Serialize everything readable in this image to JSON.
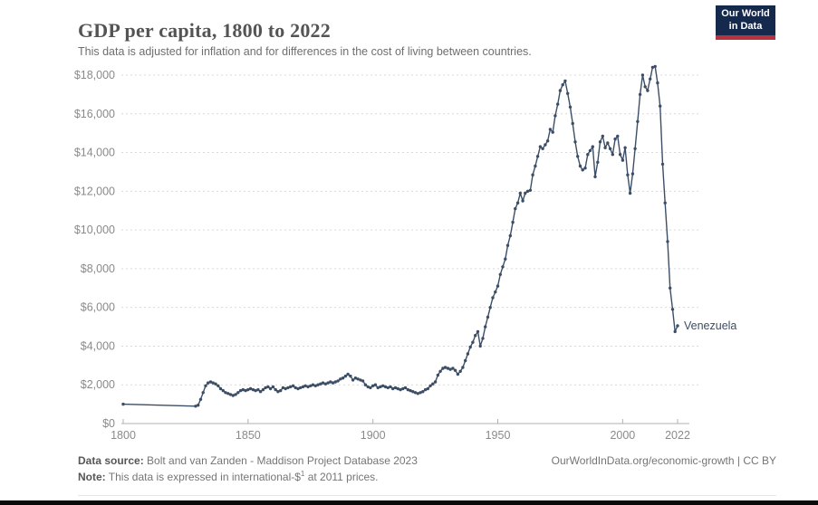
{
  "header": {
    "title": "GDP per capita, 1800 to 2022",
    "subtitle": "This data is adjusted for inflation and for differences in the cost of living between countries."
  },
  "logo": {
    "line1": "Our World",
    "line2": "in Data",
    "bg_color": "#15294c",
    "bar_color": "#b5333f"
  },
  "chart_data": {
    "type": "line",
    "title": "GDP per capita, 1800 to 2022",
    "xlabel": "",
    "ylabel": "",
    "xlim": [
      1800,
      2022
    ],
    "ylim": [
      0,
      18000
    ],
    "grid": "horizontal-dotted",
    "x_ticks": [
      {
        "value": 1800,
        "label": "1800"
      },
      {
        "value": 1850,
        "label": "1850"
      },
      {
        "value": 1900,
        "label": "1900"
      },
      {
        "value": 1950,
        "label": "1950"
      },
      {
        "value": 2000,
        "label": "2000"
      },
      {
        "value": 2022,
        "label": "2022"
      }
    ],
    "y_ticks": [
      {
        "value": 0,
        "label": "$0"
      },
      {
        "value": 2000,
        "label": "$2,000"
      },
      {
        "value": 4000,
        "label": "$4,000"
      },
      {
        "value": 6000,
        "label": "$6,000"
      },
      {
        "value": 8000,
        "label": "$8,000"
      },
      {
        "value": 10000,
        "label": "$10,000"
      },
      {
        "value": 12000,
        "label": "$12,000"
      },
      {
        "value": 14000,
        "label": "$14,000"
      },
      {
        "value": 16000,
        "label": "$16,000"
      },
      {
        "value": 18000,
        "label": "$18,000"
      }
    ],
    "series": [
      {
        "name": "Venezuela",
        "color": "#3c4e66",
        "end_label": "Venezuela",
        "points": [
          [
            1800,
            1000
          ],
          [
            1829,
            900
          ],
          [
            1830,
            950
          ],
          [
            1831,
            1250
          ],
          [
            1832,
            1600
          ],
          [
            1833,
            1950
          ],
          [
            1834,
            2100
          ],
          [
            1835,
            2150
          ],
          [
            1836,
            2100
          ],
          [
            1837,
            2050
          ],
          [
            1838,
            1950
          ],
          [
            1839,
            1800
          ],
          [
            1840,
            1700
          ],
          [
            1841,
            1600
          ],
          [
            1842,
            1550
          ],
          [
            1843,
            1500
          ],
          [
            1844,
            1450
          ],
          [
            1845,
            1500
          ],
          [
            1846,
            1600
          ],
          [
            1847,
            1700
          ],
          [
            1848,
            1750
          ],
          [
            1849,
            1700
          ],
          [
            1850,
            1750
          ],
          [
            1851,
            1800
          ],
          [
            1852,
            1750
          ],
          [
            1853,
            1700
          ],
          [
            1854,
            1750
          ],
          [
            1855,
            1650
          ],
          [
            1856,
            1750
          ],
          [
            1857,
            1850
          ],
          [
            1858,
            1900
          ],
          [
            1859,
            1800
          ],
          [
            1860,
            1900
          ],
          [
            1861,
            1750
          ],
          [
            1862,
            1650
          ],
          [
            1863,
            1700
          ],
          [
            1864,
            1850
          ],
          [
            1865,
            1800
          ],
          [
            1866,
            1850
          ],
          [
            1867,
            1900
          ],
          [
            1868,
            1950
          ],
          [
            1869,
            1850
          ],
          [
            1870,
            1800
          ],
          [
            1871,
            1850
          ],
          [
            1872,
            1900
          ],
          [
            1873,
            1950
          ],
          [
            1874,
            1900
          ],
          [
            1875,
            1950
          ],
          [
            1876,
            2000
          ],
          [
            1877,
            1950
          ],
          [
            1878,
            2000
          ],
          [
            1879,
            2050
          ],
          [
            1880,
            2100
          ],
          [
            1881,
            2050
          ],
          [
            1882,
            2100
          ],
          [
            1883,
            2150
          ],
          [
            1884,
            2100
          ],
          [
            1885,
            2150
          ],
          [
            1886,
            2200
          ],
          [
            1887,
            2300
          ],
          [
            1888,
            2350
          ],
          [
            1889,
            2450
          ],
          [
            1890,
            2550
          ],
          [
            1891,
            2450
          ],
          [
            1892,
            2250
          ],
          [
            1893,
            2350
          ],
          [
            1894,
            2300
          ],
          [
            1895,
            2250
          ],
          [
            1896,
            2200
          ],
          [
            1897,
            2000
          ],
          [
            1898,
            1900
          ],
          [
            1899,
            1850
          ],
          [
            1900,
            1950
          ],
          [
            1901,
            2000
          ],
          [
            1902,
            1850
          ],
          [
            1903,
            1900
          ],
          [
            1904,
            1950
          ],
          [
            1905,
            1900
          ],
          [
            1906,
            1850
          ],
          [
            1907,
            1900
          ],
          [
            1908,
            1800
          ],
          [
            1909,
            1850
          ],
          [
            1910,
            1800
          ],
          [
            1911,
            1750
          ],
          [
            1912,
            1800
          ],
          [
            1913,
            1850
          ],
          [
            1914,
            1750
          ],
          [
            1915,
            1700
          ],
          [
            1916,
            1650
          ],
          [
            1917,
            1600
          ],
          [
            1918,
            1550
          ],
          [
            1919,
            1600
          ],
          [
            1920,
            1650
          ],
          [
            1921,
            1750
          ],
          [
            1922,
            1800
          ],
          [
            1923,
            1950
          ],
          [
            1924,
            2050
          ],
          [
            1925,
            2150
          ],
          [
            1926,
            2500
          ],
          [
            1927,
            2700
          ],
          [
            1928,
            2850
          ],
          [
            1929,
            2900
          ],
          [
            1930,
            2850
          ],
          [
            1931,
            2800
          ],
          [
            1932,
            2850
          ],
          [
            1933,
            2750
          ],
          [
            1934,
            2550
          ],
          [
            1935,
            2700
          ],
          [
            1936,
            2900
          ],
          [
            1937,
            3250
          ],
          [
            1938,
            3600
          ],
          [
            1939,
            3950
          ],
          [
            1940,
            4200
          ],
          [
            1941,
            4550
          ],
          [
            1942,
            4750
          ],
          [
            1943,
            4000
          ],
          [
            1944,
            4400
          ],
          [
            1945,
            5000
          ],
          [
            1946,
            5500
          ],
          [
            1947,
            6000
          ],
          [
            1948,
            6500
          ],
          [
            1949,
            6800
          ],
          [
            1950,
            7100
          ],
          [
            1951,
            7700
          ],
          [
            1952,
            8100
          ],
          [
            1953,
            8500
          ],
          [
            1954,
            9200
          ],
          [
            1955,
            9700
          ],
          [
            1956,
            10400
          ],
          [
            1957,
            11100
          ],
          [
            1958,
            11400
          ],
          [
            1959,
            11900
          ],
          [
            1960,
            11500
          ],
          [
            1961,
            11900
          ],
          [
            1962,
            12000
          ],
          [
            1963,
            12050
          ],
          [
            1964,
            12850
          ],
          [
            1965,
            13300
          ],
          [
            1966,
            13800
          ],
          [
            1967,
            14300
          ],
          [
            1968,
            14200
          ],
          [
            1969,
            14400
          ],
          [
            1970,
            14600
          ],
          [
            1971,
            15200
          ],
          [
            1972,
            15050
          ],
          [
            1973,
            15900
          ],
          [
            1974,
            16500
          ],
          [
            1975,
            17200
          ],
          [
            1976,
            17500
          ],
          [
            1977,
            17700
          ],
          [
            1978,
            17050
          ],
          [
            1979,
            16350
          ],
          [
            1980,
            15500
          ],
          [
            1981,
            14550
          ],
          [
            1982,
            13800
          ],
          [
            1983,
            13300
          ],
          [
            1984,
            13100
          ],
          [
            1985,
            13200
          ],
          [
            1986,
            13900
          ],
          [
            1987,
            14100
          ],
          [
            1988,
            14300
          ],
          [
            1989,
            12750
          ],
          [
            1990,
            13500
          ],
          [
            1991,
            14550
          ],
          [
            1992,
            14850
          ],
          [
            1993,
            14250
          ],
          [
            1994,
            14500
          ],
          [
            1995,
            14200
          ],
          [
            1996,
            13900
          ],
          [
            1997,
            14700
          ],
          [
            1998,
            14850
          ],
          [
            1999,
            13900
          ],
          [
            2000,
            13600
          ],
          [
            2001,
            14250
          ],
          [
            2002,
            12850
          ],
          [
            2003,
            11900
          ],
          [
            2004,
            12900
          ],
          [
            2005,
            14200
          ],
          [
            2006,
            15600
          ],
          [
            2007,
            17000
          ],
          [
            2008,
            18000
          ],
          [
            2009,
            17400
          ],
          [
            2010,
            17200
          ],
          [
            2011,
            17800
          ],
          [
            2012,
            18400
          ],
          [
            2013,
            18450
          ],
          [
            2014,
            17600
          ],
          [
            2015,
            16400
          ],
          [
            2016,
            13400
          ],
          [
            2017,
            11400
          ],
          [
            2018,
            9400
          ],
          [
            2019,
            7000
          ],
          [
            2020,
            5900
          ],
          [
            2021,
            4750
          ],
          [
            2022,
            5050
          ]
        ]
      }
    ],
    "legend_position": "end-of-line-label",
    "colors": {
      "grid": "#d9d9d9",
      "axis_line": "#b0b0b0",
      "tick_text": "#8a8a8a"
    }
  },
  "footer": {
    "source_label": "Data source:",
    "source_text": " Bolt and van Zanden - Maddison Project Database 2023",
    "note_label": "Note:",
    "note_text_pre": " This data is expressed in international-$",
    "note_sup": "1",
    "note_text_post": " at 2011 prices.",
    "origin": "OurWorldInData.org/economic-growth | CC BY"
  }
}
